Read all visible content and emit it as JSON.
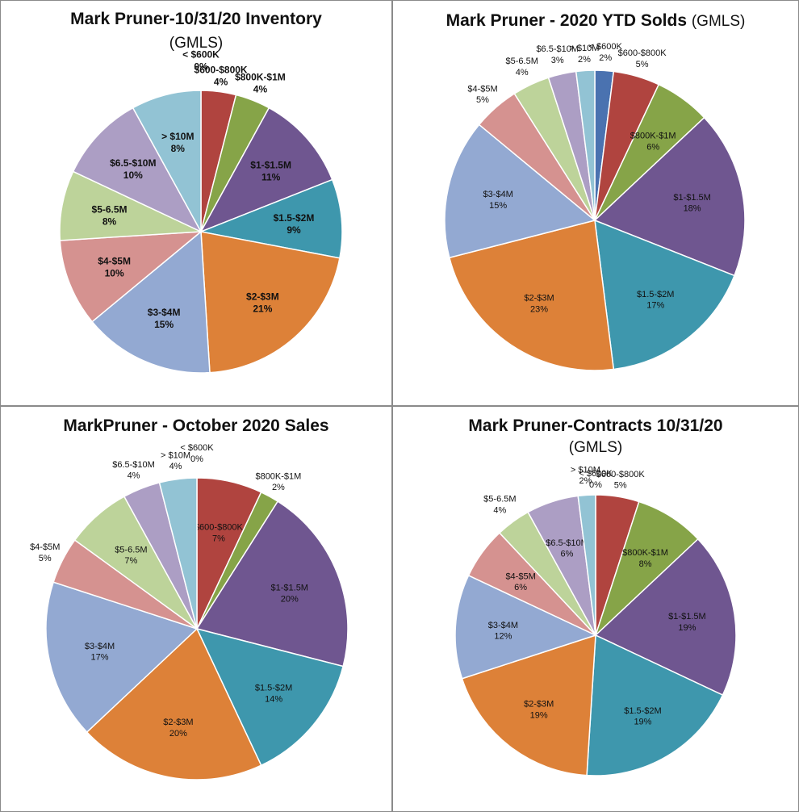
{
  "chart_data": [
    {
      "type": "pie",
      "title": "Mark Pruner-10/31/20 Inventory",
      "subtitle": "(GMLS)",
      "slices": [
        {
          "label": "< $600K",
          "value": 0,
          "pct_label": "0%",
          "color": "#4a72b0"
        },
        {
          "label": "$600-$800K",
          "value": 4,
          "pct_label": "4%",
          "color": "#b0443f"
        },
        {
          "label": "$800K-$1M",
          "value": 4,
          "pct_label": "4%",
          "color": "#86a448"
        },
        {
          "label": "$1-$1.5M",
          "value": 11,
          "pct_label": "11%",
          "color": "#6f5690"
        },
        {
          "label": "$1.5-$2M",
          "value": 9,
          "pct_label": "9%",
          "color": "#3e97ad"
        },
        {
          "label": "$2-$3M",
          "value": 21,
          "pct_label": "21%",
          "color": "#dd8138"
        },
        {
          "label": "$3-$4M",
          "value": 15,
          "pct_label": "15%",
          "color": "#93a9d2"
        },
        {
          "label": "$4-$5M",
          "value": 10,
          "pct_label": "10%",
          "color": "#d59290"
        },
        {
          "label": "$5-6.5M",
          "value": 8,
          "pct_label": "8%",
          "color": "#bdd39a"
        },
        {
          "label": "$6.5-$10M",
          "value": 10,
          "pct_label": "10%",
          "color": "#ac9ec4"
        },
        {
          "label": "> $10M",
          "value": 8,
          "pct_label": "8%",
          "color": "#92c3d4"
        }
      ]
    },
    {
      "type": "pie",
      "title": "Mark Pruner - 2020 YTD Solds",
      "title_suffix": "(GMLS)",
      "slices": [
        {
          "label": "< $600K",
          "value": 2,
          "pct_label": "2%",
          "color": "#4a72b0"
        },
        {
          "label": "$600-$800K",
          "value": 5,
          "pct_label": "5%",
          "color": "#b0443f"
        },
        {
          "label": "$800K-$1M",
          "value": 6,
          "pct_label": "6%",
          "color": "#86a448"
        },
        {
          "label": "$1-$1.5M",
          "value": 18,
          "pct_label": "18%",
          "color": "#6f5690"
        },
        {
          "label": "$1.5-$2M",
          "value": 17,
          "pct_label": "17%",
          "color": "#3e97ad"
        },
        {
          "label": "$2-$3M",
          "value": 23,
          "pct_label": "23%",
          "color": "#dd8138"
        },
        {
          "label": "$3-$4M",
          "value": 15,
          "pct_label": "15%",
          "color": "#93a9d2"
        },
        {
          "label": "$4-$5M",
          "value": 5,
          "pct_label": "5%",
          "color": "#d59290"
        },
        {
          "label": "$5-6.5M",
          "value": 4,
          "pct_label": "4%",
          "color": "#bdd39a"
        },
        {
          "label": "$6.5-$10M",
          "value": 3,
          "pct_label": "3%",
          "color": "#ac9ec4"
        },
        {
          "label": "> $10M",
          "value": 2,
          "pct_label": "2%",
          "color": "#92c3d4"
        }
      ]
    },
    {
      "type": "pie",
      "title": "MarkPruner -  October 2020 Sales",
      "slices": [
        {
          "label": "< $600K",
          "value": 0,
          "pct_label": "0%",
          "color": "#4a72b0"
        },
        {
          "label": "$600-$800K",
          "value": 7,
          "pct_label": "7%",
          "color": "#b0443f"
        },
        {
          "label": "$800K-$1M",
          "value": 2,
          "pct_label": "2%",
          "color": "#86a448"
        },
        {
          "label": "$1-$1.5M",
          "value": 20,
          "pct_label": "20%",
          "color": "#6f5690"
        },
        {
          "label": "$1.5-$2M",
          "value": 14,
          "pct_label": "14%",
          "color": "#3e97ad"
        },
        {
          "label": "$2-$3M",
          "value": 20,
          "pct_label": "20%",
          "color": "#dd8138"
        },
        {
          "label": "$3-$4M",
          "value": 17,
          "pct_label": "17%",
          "color": "#93a9d2"
        },
        {
          "label": "$4-$5M",
          "value": 5,
          "pct_label": "5%",
          "color": "#d59290"
        },
        {
          "label": "$5-6.5M",
          "value": 7,
          "pct_label": "7%",
          "color": "#bdd39a"
        },
        {
          "label": "$6.5-$10M",
          "value": 4,
          "pct_label": "4%",
          "color": "#ac9ec4"
        },
        {
          "label": "> $10M",
          "value": 4,
          "pct_label": "4%",
          "color": "#92c3d4"
        }
      ]
    },
    {
      "type": "pie",
      "title": "Mark Pruner-Contracts 10/31/20",
      "subtitle": "(GMLS)",
      "slices": [
        {
          "label": "< $600K",
          "value": 0,
          "pct_label": "0%",
          "color": "#4a72b0"
        },
        {
          "label": "$600-$800K",
          "value": 5,
          "pct_label": "5%",
          "color": "#b0443f"
        },
        {
          "label": "$800K-$1M",
          "value": 8,
          "pct_label": "8%",
          "color": "#86a448"
        },
        {
          "label": "$1-$1.5M",
          "value": 19,
          "pct_label": "19%",
          "color": "#6f5690"
        },
        {
          "label": "$1.5-$2M",
          "value": 19,
          "pct_label": "19%",
          "color": "#3e97ad"
        },
        {
          "label": "$2-$3M",
          "value": 19,
          "pct_label": "19%",
          "color": "#dd8138"
        },
        {
          "label": "$3-$4M",
          "value": 12,
          "pct_label": "12%",
          "color": "#93a9d2"
        },
        {
          "label": "$4-$5M",
          "value": 6,
          "pct_label": "6%",
          "color": "#d59290"
        },
        {
          "label": "$5-6.5M",
          "value": 4,
          "pct_label": "4%",
          "color": "#bdd39a"
        },
        {
          "label": "$6.5-$10M",
          "value": 6,
          "pct_label": "6%",
          "color": "#ac9ec4"
        },
        {
          "label": "> $10M",
          "value": 2,
          "pct_label": "2%",
          "color": "#92c3d4"
        }
      ]
    }
  ]
}
